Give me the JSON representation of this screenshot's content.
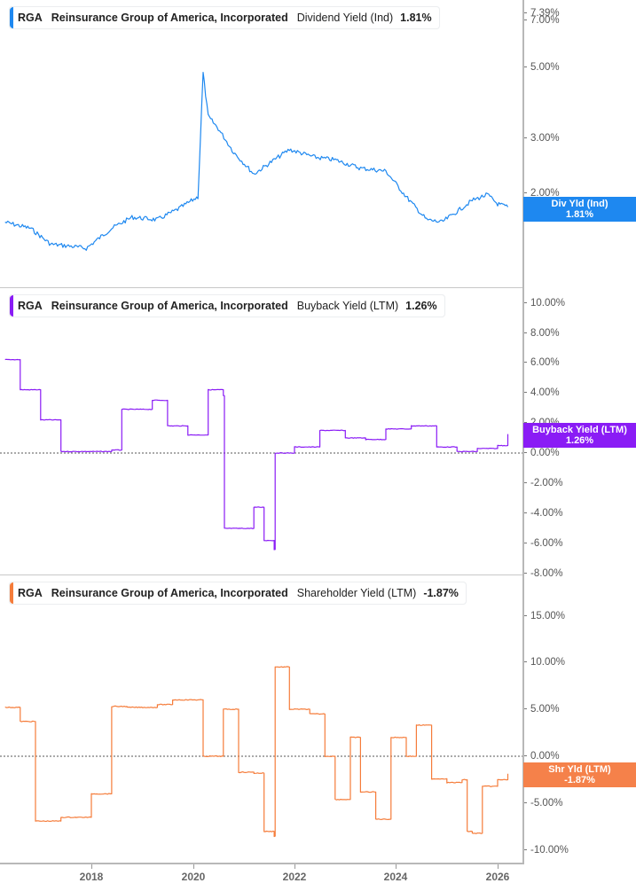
{
  "chart_data": [
    {
      "type": "line",
      "title": "RGA Reinsurance Group of America, Incorporated Dividend Yield (Ind)",
      "ticker": "RGA",
      "company": "Reinsurance Group of America, Incorporated",
      "metric": "Dividend Yield (Ind)",
      "current_value": "1.81%",
      "flag_label": "Div Yld (Ind)",
      "color": "#1e88f0",
      "y_scale": "log",
      "yticks": [
        "7.39%",
        "7.00%",
        "5.00%",
        "3.00%",
        "2.00%"
      ],
      "x": [
        2016.3,
        2016.8,
        2017.2,
        2017.6,
        2017.9,
        2018.4,
        2018.8,
        2019.3,
        2019.7,
        2020.1,
        2020.2,
        2020.3,
        2020.5,
        2020.8,
        2021.2,
        2021.6,
        2021.9,
        2022.4,
        2022.8,
        2023.3,
        2023.8,
        2024.2,
        2024.6,
        2024.9,
        2025.2,
        2025.5,
        2025.8,
        2026.0,
        2026.2
      ],
      "values": [
        1.62,
        1.55,
        1.38,
        1.36,
        1.34,
        1.55,
        1.68,
        1.65,
        1.78,
        1.95,
        4.8,
        3.5,
        3.2,
        2.7,
        2.3,
        2.55,
        2.75,
        2.6,
        2.55,
        2.4,
        2.35,
        1.95,
        1.65,
        1.62,
        1.75,
        1.9,
        1.98,
        1.85,
        1.81
      ]
    },
    {
      "type": "line",
      "title": "RGA Reinsurance Group of America, Incorporated Buyback Yield (LTM)",
      "ticker": "RGA",
      "company": "Reinsurance Group of America, Incorporated",
      "metric": "Buyback Yield (LTM)",
      "current_value": "1.26%",
      "flag_label": "Buyback Yield (LTM)",
      "color": "#8a1cf5",
      "yticks": [
        "10.00%",
        "8.00%",
        "6.00%",
        "4.00%",
        "2.00%",
        "0.00%",
        "-2.00%",
        "-4.00%",
        "-6.00%",
        "-8.00%"
      ],
      "ylim": [
        -8,
        10
      ],
      "x": [
        2016.3,
        2016.6,
        2017.0,
        2017.4,
        2017.8,
        2018.4,
        2018.6,
        2019.2,
        2019.5,
        2019.9,
        2020.3,
        2020.6,
        2020.62,
        2021.2,
        2021.4,
        2021.6,
        2021.62,
        2022.0,
        2022.5,
        2023.0,
        2023.4,
        2023.8,
        2024.3,
        2024.8,
        2025.2,
        2025.6,
        2026.0,
        2026.2
      ],
      "values": [
        6.2,
        4.2,
        2.2,
        0.1,
        0.1,
        0.2,
        2.9,
        3.5,
        1.8,
        1.2,
        4.2,
        3.8,
        -5.0,
        -3.6,
        -5.8,
        -6.4,
        0.0,
        0.4,
        1.5,
        1.0,
        0.9,
        1.6,
        1.8,
        0.4,
        0.1,
        0.3,
        0.5,
        1.26
      ]
    },
    {
      "type": "line",
      "title": "RGA Reinsurance Group of America, Incorporated Shareholder Yield (LTM)",
      "ticker": "RGA",
      "company": "Reinsurance Group of America, Incorporated",
      "metric": "Shareholder Yield (LTM)",
      "current_value": "-1.87%",
      "flag_label": "Shr Yld (LTM)",
      "color": "#f57c3a",
      "yticks": [
        "15.00%",
        "10.00%",
        "5.00%",
        "0.00%",
        "-5.00%",
        "-10.00%"
      ],
      "ylim": [
        -10,
        15
      ],
      "x": [
        2016.3,
        2016.6,
        2016.9,
        2017.4,
        2017.7,
        2018.0,
        2018.4,
        2018.7,
        2019.3,
        2019.6,
        2020.2,
        2020.6,
        2020.9,
        2021.2,
        2021.4,
        2021.6,
        2021.62,
        2021.9,
        2022.3,
        2022.6,
        2022.8,
        2023.1,
        2023.3,
        2023.6,
        2023.9,
        2024.2,
        2024.4,
        2024.7,
        2025.0,
        2025.3,
        2025.4,
        2025.5,
        2025.7,
        2026.0,
        2026.2
      ],
      "values": [
        5.2,
        3.7,
        -6.9,
        -6.5,
        -6.5,
        -4.0,
        5.3,
        5.2,
        5.5,
        6.0,
        0.0,
        5.0,
        -1.7,
        -1.8,
        -8.0,
        -8.5,
        9.5,
        5.0,
        4.5,
        0.0,
        -4.6,
        2.0,
        -3.8,
        -6.7,
        2.0,
        0.0,
        3.3,
        -2.4,
        -2.8,
        -2.5,
        -8.0,
        -8.2,
        -3.2,
        -2.5,
        -1.87
      ]
    }
  ],
  "x_axis": {
    "ticks": [
      "2018",
      "2020",
      "2022",
      "2024",
      "2026"
    ]
  }
}
